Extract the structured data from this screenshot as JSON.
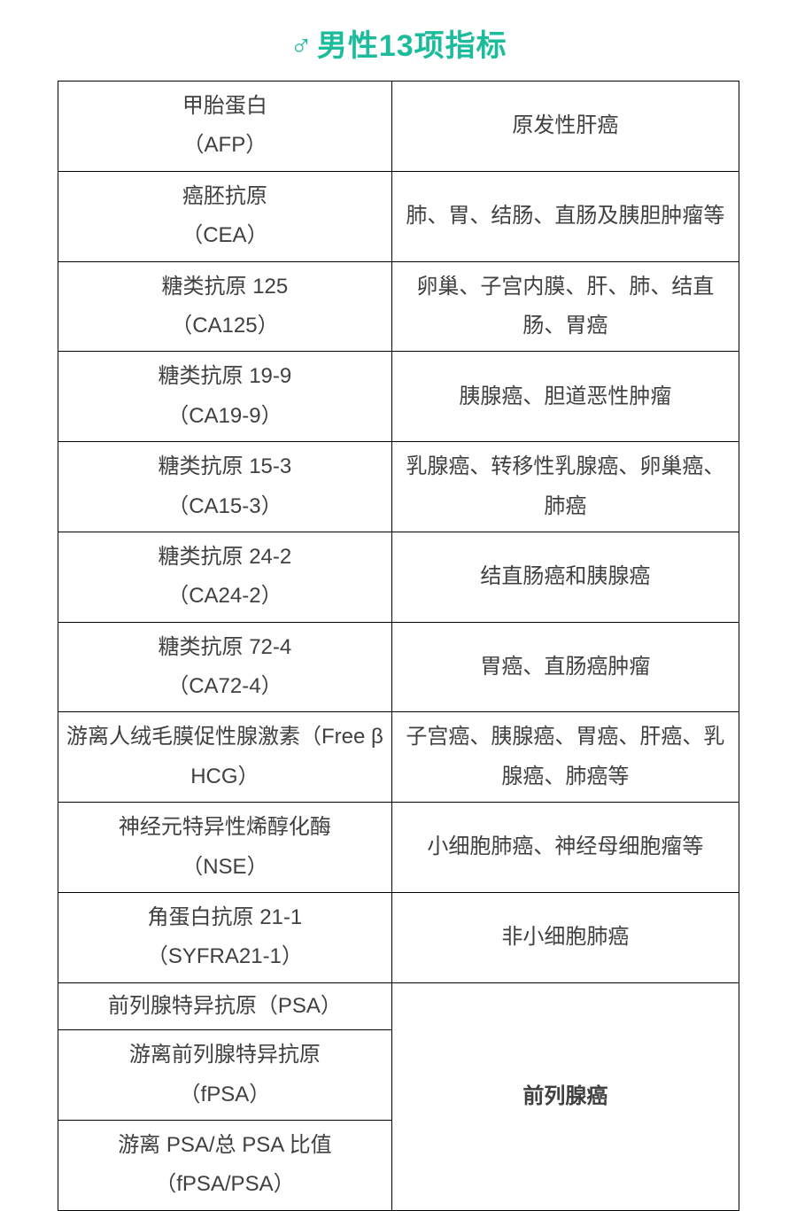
{
  "title": {
    "symbol": "♂",
    "text": "男性13项指标",
    "color": "#1bbc9b",
    "fontsize": 34
  },
  "table": {
    "border_color": "#000000",
    "text_color": "#404040",
    "cell_fontsize": 24,
    "col_widths_pct": [
      49,
      51
    ],
    "rows": [
      {
        "name_cn": "甲胎蛋白",
        "name_code": "（AFP）",
        "desc": "原发性肝癌"
      },
      {
        "name_cn": "癌胚抗原",
        "name_code": "（CEA）",
        "desc": "肺、胃、结肠、直肠及胰胆肿瘤等"
      },
      {
        "name_cn": "糖类抗原 125",
        "name_code": "（CA125）",
        "desc": "卵巢、子宫内膜、肝、肺、结直肠、胃癌"
      },
      {
        "name_cn": "糖类抗原 19-9",
        "name_code": "（CA19-9）",
        "desc": "胰腺癌、胆道恶性肿瘤"
      },
      {
        "name_cn": "糖类抗原 15-3",
        "name_code": "（CA15-3）",
        "desc": "乳腺癌、转移性乳腺癌、卵巢癌、肺癌"
      },
      {
        "name_cn": "糖类抗原 24-2",
        "name_code": "（CA24-2）",
        "desc": "结直肠癌和胰腺癌"
      },
      {
        "name_cn": "糖类抗原 72-4",
        "name_code": "（CA72-4）",
        "desc": "胃癌、直肠癌肿瘤"
      },
      {
        "name_cn": "游离人绒毛膜促性腺激素（Free  β  HCG）",
        "name_code": "",
        "desc": "子宫癌、胰腺癌、胃癌、肝癌、乳腺癌、肺癌等",
        "two_line_wrap": true
      },
      {
        "name_cn": "神经元特异性烯醇化酶",
        "name_code": "（NSE）",
        "desc": "小细胞肺癌、神经母细胞瘤等"
      },
      {
        "name_cn": "角蛋白抗原 21-1",
        "name_code": "（SYFRA21-1）",
        "desc": "非小细胞肺癌"
      }
    ],
    "merged_group": {
      "left": [
        {
          "name_cn": "前列腺特异抗原（PSA）",
          "single_line": true
        },
        {
          "name_cn": "游离前列腺特异抗原",
          "name_code": "（fPSA）"
        },
        {
          "name_cn": "游离 PSA/总 PSA 比值",
          "name_code": "（fPSA/PSA）"
        }
      ],
      "desc": "前列腺癌",
      "desc_bold": true
    }
  }
}
